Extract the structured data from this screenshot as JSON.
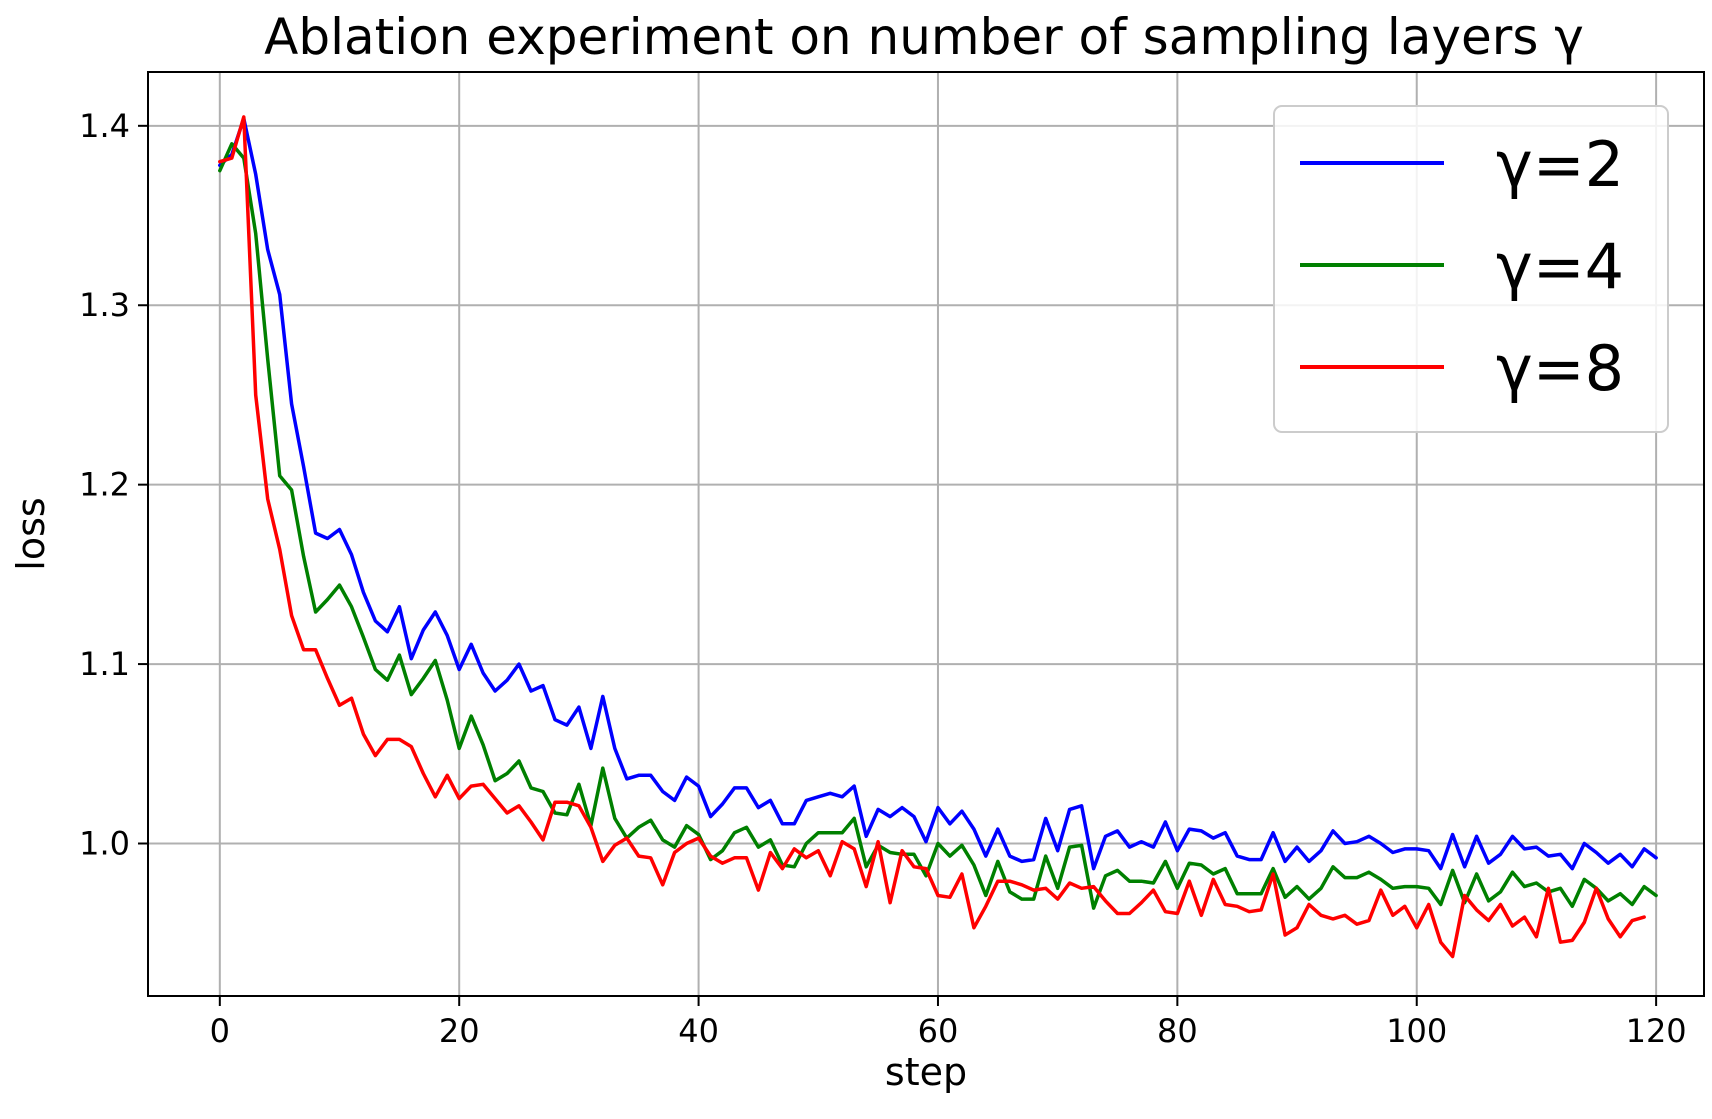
{
  "chart_data": {
    "type": "line",
    "title": "Ablation experiment on number of sampling layers γ",
    "xlabel": "step",
    "ylabel": "loss",
    "xlim": [
      -6,
      124
    ],
    "ylim": [
      0.915,
      1.43
    ],
    "xticks": [
      0,
      20,
      40,
      60,
      80,
      100,
      120
    ],
    "xtick_labels": [
      "0",
      "20",
      "40",
      "60",
      "80",
      "100",
      "120"
    ],
    "yticks": [
      1.0,
      1.1,
      1.2,
      1.3,
      1.4
    ],
    "ytick_labels": [
      "1.0",
      "1.1",
      "1.2",
      "1.3",
      "1.4"
    ],
    "grid": true,
    "legend_position": "top-right",
    "x_start": 0,
    "series": [
      {
        "name": "γ=2",
        "color": "#0000ff",
        "values": [
          1.378,
          1.384,
          1.404,
          1.373,
          1.331,
          1.306,
          1.245,
          1.21,
          1.173,
          1.17,
          1.175,
          1.161,
          1.14,
          1.124,
          1.118,
          1.132,
          1.103,
          1.119,
          1.129,
          1.116,
          1.097,
          1.111,
          1.095,
          1.085,
          1.091,
          1.1,
          1.085,
          1.088,
          1.069,
          1.066,
          1.076,
          1.053,
          1.082,
          1.053,
          1.036,
          1.038,
          1.038,
          1.029,
          1.024,
          1.037,
          1.032,
          1.015,
          1.022,
          1.031,
          1.031,
          1.02,
          1.024,
          1.011,
          1.011,
          1.024,
          1.026,
          1.028,
          1.026,
          1.032,
          1.004,
          1.019,
          1.015,
          1.02,
          1.015,
          1.001,
          1.02,
          1.011,
          1.018,
          1.008,
          0.993,
          1.008,
          0.993,
          0.99,
          0.991,
          1.014,
          0.996,
          1.019,
          1.021,
          0.986,
          1.004,
          1.007,
          0.998,
          1.001,
          0.998,
          1.012,
          0.996,
          1.008,
          1.007,
          1.003,
          1.006,
          0.993,
          0.991,
          0.991,
          1.006,
          0.99,
          0.998,
          0.99,
          0.996,
          1.007,
          1.0,
          1.001,
          1.004,
          1.0,
          0.995,
          0.997,
          0.997,
          0.996,
          0.986,
          1.005,
          0.987,
          1.004,
          0.989,
          0.994,
          1.004,
          0.997,
          0.998,
          0.993,
          0.994,
          0.986,
          1.0,
          0.995,
          0.989,
          0.994,
          0.987,
          0.997,
          0.992
        ]
      },
      {
        "name": "γ=4",
        "color": "#008000",
        "values": [
          1.375,
          1.39,
          1.382,
          1.34,
          1.27,
          1.205,
          1.197,
          1.16,
          1.129,
          1.136,
          1.144,
          1.132,
          1.115,
          1.097,
          1.091,
          1.105,
          1.083,
          1.092,
          1.102,
          1.08,
          1.053,
          1.071,
          1.055,
          1.035,
          1.039,
          1.046,
          1.031,
          1.029,
          1.017,
          1.016,
          1.033,
          1.01,
          1.042,
          1.014,
          1.003,
          1.009,
          1.013,
          1.002,
          0.998,
          1.01,
          1.005,
          0.991,
          0.996,
          1.006,
          1.009,
          0.998,
          1.002,
          0.988,
          0.987,
          1.0,
          1.006,
          1.006,
          1.006,
          1.014,
          0.987,
          0.999,
          0.995,
          0.994,
          0.994,
          0.982,
          1.0,
          0.993,
          0.999,
          0.988,
          0.971,
          0.99,
          0.973,
          0.969,
          0.969,
          0.993,
          0.975,
          0.998,
          0.999,
          0.964,
          0.982,
          0.985,
          0.979,
          0.979,
          0.978,
          0.99,
          0.975,
          0.989,
          0.988,
          0.983,
          0.986,
          0.972,
          0.972,
          0.972,
          0.986,
          0.97,
          0.976,
          0.969,
          0.975,
          0.987,
          0.981,
          0.981,
          0.984,
          0.98,
          0.975,
          0.976,
          0.976,
          0.975,
          0.966,
          0.985,
          0.967,
          0.983,
          0.968,
          0.973,
          0.984,
          0.976,
          0.978,
          0.973,
          0.975,
          0.965,
          0.98,
          0.975,
          0.968,
          0.972,
          0.966,
          0.976,
          0.971
        ]
      },
      {
        "name": "γ=8",
        "color": "#ff0000",
        "values": [
          1.38,
          1.382,
          1.405,
          1.25,
          1.192,
          1.164,
          1.127,
          1.108,
          1.108,
          1.092,
          1.077,
          1.081,
          1.061,
          1.049,
          1.058,
          1.058,
          1.054,
          1.039,
          1.026,
          1.038,
          1.025,
          1.032,
          1.033,
          1.025,
          1.017,
          1.021,
          1.012,
          1.002,
          1.023,
          1.023,
          1.021,
          1.009,
          0.99,
          0.999,
          1.003,
          0.993,
          0.992,
          0.977,
          0.995,
          1.0,
          1.003,
          0.993,
          0.989,
          0.992,
          0.992,
          0.974,
          0.995,
          0.986,
          0.997,
          0.992,
          0.996,
          0.982,
          1.001,
          0.997,
          0.976,
          1.001,
          0.967,
          0.996,
          0.987,
          0.986,
          0.971,
          0.97,
          0.983,
          0.953,
          0.965,
          0.979,
          0.979,
          0.977,
          0.974,
          0.975,
          0.969,
          0.978,
          0.975,
          0.976,
          0.968,
          0.961,
          0.961,
          0.967,
          0.974,
          0.962,
          0.961,
          0.979,
          0.96,
          0.98,
          0.966,
          0.965,
          0.962,
          0.963,
          0.983,
          0.949,
          0.953,
          0.966,
          0.96,
          0.958,
          0.96,
          0.955,
          0.957,
          0.974,
          0.96,
          0.965,
          0.953,
          0.966,
          0.945,
          0.937,
          0.971,
          0.963,
          0.957,
          0.966,
          0.954,
          0.959,
          0.948,
          0.975,
          0.945,
          0.946,
          0.956,
          0.975,
          0.958,
          0.948,
          0.957,
          0.959
        ]
      }
    ]
  }
}
